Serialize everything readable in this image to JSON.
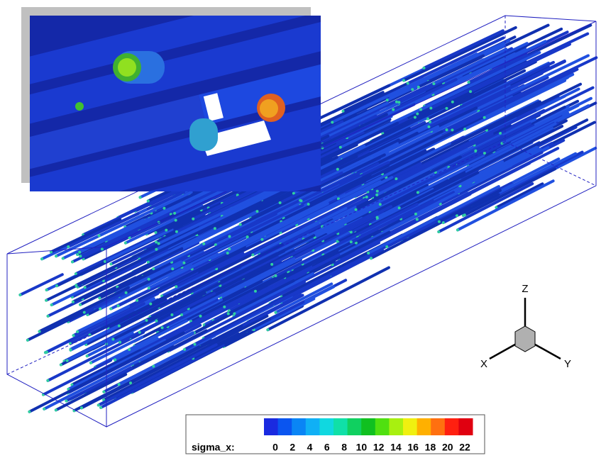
{
  "legend": {
    "label": "sigma_x:",
    "ticks": [
      0,
      2,
      4,
      6,
      8,
      10,
      12,
      14,
      16,
      18,
      20,
      22
    ],
    "colors": [
      "#1a2ae0",
      "#0a55f0",
      "#0a85f5",
      "#10b0f5",
      "#10d8e0",
      "#10e0a8",
      "#10d060",
      "#10c020",
      "#50e010",
      "#a8f010",
      "#f0f010",
      "#ffb000",
      "#ff7010",
      "#ff2010",
      "#e00010"
    ]
  },
  "axes": {
    "x": "X",
    "y": "Y",
    "z": "Z"
  }
}
